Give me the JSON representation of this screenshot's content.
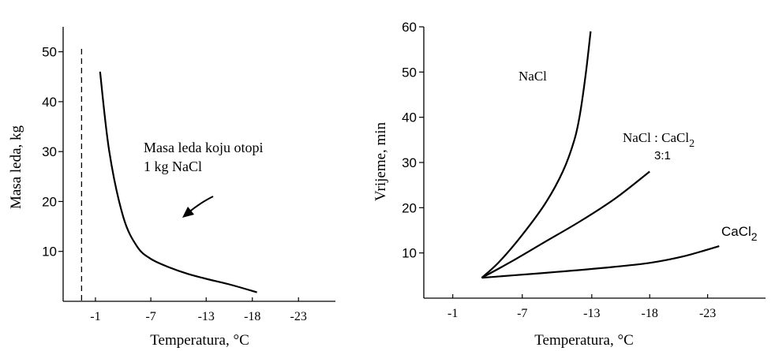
{
  "chart_data": [
    {
      "type": "line",
      "title": "",
      "xlabel": "Temperatura, °C",
      "ylabel": "Masa leda, kg",
      "x_ticks": [
        "-1",
        "-7",
        "-13",
        "-18",
        "-23"
      ],
      "y_ticks": [
        "10",
        "20",
        "30",
        "40",
        "50"
      ],
      "xlim": [
        2.5,
        -27
      ],
      "ylim": [
        0,
        55
      ],
      "reference_line_x": 0.5,
      "annotation": [
        "Masa leda koju otopi",
        "1 kg NaCl"
      ],
      "series": [
        {
          "x": [
            -1.5,
            -2.5,
            -4,
            -5.5,
            -7,
            -9,
            -11,
            -13,
            -15.5,
            -18.5
          ],
          "y": [
            46,
            30,
            17,
            11,
            8.5,
            6.8,
            5.5,
            4.5,
            3.4,
            1.8
          ]
        }
      ]
    },
    {
      "type": "line",
      "title": "",
      "xlabel": "Temperatura, °C",
      "ylabel": "Vrijeme, min",
      "x_ticks": [
        "-1",
        "-7",
        "-13",
        "-18",
        "-23"
      ],
      "y_ticks": [
        "10",
        "20",
        "30",
        "40",
        "50",
        "60"
      ],
      "xlim": [
        1.5,
        -28
      ],
      "ylim": [
        0,
        60
      ],
      "series": [
        {
          "name": "NaCl",
          "x": [
            -3.5,
            -5,
            -7,
            -9,
            -10.5,
            -11.5,
            -12,
            -12.5,
            -12.9
          ],
          "y": [
            4.5,
            8,
            14,
            21,
            28,
            35,
            41,
            50,
            59
          ]
        },
        {
          "name": "NaCl : CaCl2",
          "name_ratio": "3:1",
          "x": [
            -3.5,
            -6,
            -9,
            -12,
            -15,
            -18
          ],
          "y": [
            4.5,
            8,
            12.5,
            17,
            22,
            28
          ]
        },
        {
          "name": "CaCl2",
          "x": [
            -3.5,
            -6,
            -10,
            -14,
            -18,
            -21,
            -24
          ],
          "y": [
            4.5,
            5,
            5.8,
            6.7,
            7.8,
            9.3,
            11.5
          ]
        }
      ]
    }
  ]
}
